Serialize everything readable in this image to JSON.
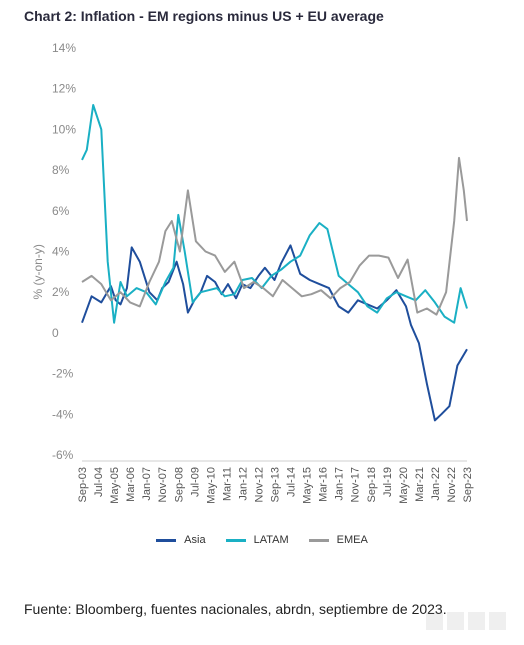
{
  "title": "Chart 2: Inflation - EM regions minus US + EU average",
  "source": "Fuente: Bloomberg, fuentes nacionales, abrdn, septiembre de 2023.",
  "chart_data": {
    "type": "line",
    "title": "Chart 2: Inflation - EM regions minus US + EU average",
    "ylabel": "% (y-on-y)",
    "xlabel": "",
    "ylim": [
      -6,
      14
    ],
    "yticks": [
      "14%",
      "12%",
      "10%",
      "8%",
      "6%",
      "4%",
      "2%",
      "0",
      "-2%",
      "-4%",
      "-6%"
    ],
    "ytick_values": [
      14,
      12,
      10,
      8,
      6,
      4,
      2,
      0,
      -2,
      -4,
      -6
    ],
    "xtick_labels": [
      "Sep-03",
      "Jul-04",
      "May-05",
      "Mar-06",
      "Jan-07",
      "Nov-07",
      "Sep-08",
      "Jul-09",
      "May-10",
      "Mar-11",
      "Jan-12",
      "Nov-12",
      "Sep-13",
      "Jul-14",
      "May-15",
      "Mar-16",
      "Jan-17",
      "Nov-17",
      "Sep-18",
      "Jul-19",
      "May-20",
      "Mar-21",
      "Jan-22",
      "Nov-22",
      "Sep-23"
    ],
    "legend": [
      "Asia",
      "LATAM",
      "EMEA"
    ],
    "legend_position": "bottom",
    "grid": false,
    "x_start": "Sep-03",
    "x_end": "Sep-23",
    "series": [
      {
        "name": "Asia",
        "color": "#1f4e9c",
        "x": [
          "Sep-03",
          "Mar-04",
          "Sep-04",
          "Mar-05",
          "Jun-05",
          "Sep-05",
          "Jan-06",
          "Apr-06",
          "Sep-06",
          "Mar-07",
          "Aug-07",
          "Nov-07",
          "Mar-08",
          "Aug-08",
          "Dec-08",
          "Mar-09",
          "Jul-09",
          "Nov-09",
          "Mar-10",
          "Aug-10",
          "Dec-10",
          "Apr-11",
          "Sep-11",
          "Jan-12",
          "Jun-12",
          "Nov-12",
          "Mar-13",
          "Sep-13",
          "Jan-14",
          "Jul-14",
          "Jan-15",
          "Jul-15",
          "Jan-16",
          "Jul-16",
          "Jan-17",
          "Jul-17",
          "Jan-18",
          "Jul-18",
          "Jan-19",
          "Jul-19",
          "Jan-20",
          "Jul-20",
          "Oct-20",
          "Mar-21",
          "Aug-21",
          "Jan-22",
          "May-22",
          "Oct-22",
          "Mar-23",
          "Sep-23"
        ],
        "values": [
          0.5,
          1.8,
          1.5,
          2.3,
          1.6,
          1.4,
          2.2,
          4.2,
          3.5,
          2.0,
          1.6,
          2.2,
          2.5,
          3.5,
          2.4,
          1.0,
          1.6,
          2.0,
          2.8,
          2.5,
          1.9,
          2.4,
          1.7,
          2.4,
          2.2,
          2.8,
          3.2,
          2.6,
          3.4,
          4.3,
          2.9,
          2.6,
          2.4,
          2.2,
          1.3,
          1.0,
          1.6,
          1.4,
          1.2,
          1.6,
          2.1,
          1.3,
          0.4,
          -0.5,
          -2.5,
          -4.3,
          -4.0,
          -3.6,
          -1.6,
          -0.8
        ]
      },
      {
        "name": "LATAM",
        "color": "#1ab0c4",
        "x": [
          "Sep-03",
          "Dec-03",
          "Apr-04",
          "Sep-04",
          "Jan-05",
          "May-05",
          "Sep-05",
          "Jan-06",
          "Jul-06",
          "Jan-07",
          "Jul-07",
          "Jan-08",
          "Jun-08",
          "Sep-08",
          "Jan-09",
          "Jun-09",
          "Nov-09",
          "Apr-10",
          "Sep-10",
          "Feb-11",
          "Aug-11",
          "Jan-12",
          "Jul-12",
          "Jan-13",
          "Jul-13",
          "Jan-14",
          "Jul-14",
          "Jan-15",
          "Jul-15",
          "Jan-16",
          "Jun-16",
          "Jan-17",
          "Jul-17",
          "Jan-18",
          "Jul-18",
          "Jan-19",
          "Jul-19",
          "Jan-20",
          "Jul-20",
          "Jan-21",
          "Jul-21",
          "Jan-22",
          "Jul-22",
          "Jan-23",
          "May-23",
          "Sep-23"
        ],
        "values": [
          8.5,
          9.0,
          11.2,
          10.0,
          3.5,
          0.5,
          2.5,
          1.8,
          2.2,
          2.0,
          1.4,
          2.5,
          3.2,
          5.8,
          4.0,
          1.5,
          2.0,
          2.1,
          2.2,
          1.8,
          1.9,
          2.6,
          2.7,
          2.2,
          2.8,
          3.1,
          3.5,
          3.8,
          4.8,
          5.4,
          5.1,
          2.8,
          2.4,
          2.0,
          1.3,
          1.0,
          1.7,
          2.0,
          1.8,
          1.6,
          2.1,
          1.5,
          0.8,
          0.5,
          2.2,
          1.2
        ]
      },
      {
        "name": "EMEA",
        "color": "#9a9a9a",
        "x": [
          "Sep-03",
          "Mar-04",
          "Sep-04",
          "Mar-05",
          "Sep-05",
          "Mar-06",
          "Sep-06",
          "Mar-07",
          "Sep-07",
          "Jan-08",
          "May-08",
          "Oct-08",
          "Mar-09",
          "Aug-09",
          "Feb-10",
          "Aug-10",
          "Feb-11",
          "Aug-11",
          "Feb-12",
          "Aug-12",
          "Feb-13",
          "Aug-13",
          "Feb-14",
          "Aug-14",
          "Feb-15",
          "Aug-15",
          "Feb-16",
          "Aug-16",
          "Feb-17",
          "Aug-17",
          "Feb-18",
          "Aug-18",
          "Feb-19",
          "Aug-19",
          "Feb-20",
          "Aug-20",
          "Feb-21",
          "Aug-21",
          "Feb-22",
          "Aug-22",
          "Jan-23",
          "Apr-23",
          "Jul-23",
          "Sep-23"
        ],
        "values": [
          2.5,
          2.8,
          2.4,
          1.6,
          2.0,
          1.5,
          1.3,
          2.5,
          3.5,
          5.0,
          5.5,
          4.0,
          7.0,
          4.5,
          4.0,
          3.8,
          3.0,
          3.5,
          2.2,
          2.5,
          2.2,
          1.8,
          2.6,
          2.2,
          1.8,
          1.9,
          2.1,
          1.7,
          2.2,
          2.5,
          3.3,
          3.8,
          3.8,
          3.7,
          2.7,
          3.6,
          1.0,
          1.2,
          0.9,
          2.0,
          5.5,
          8.6,
          7.0,
          5.5
        ]
      }
    ]
  }
}
